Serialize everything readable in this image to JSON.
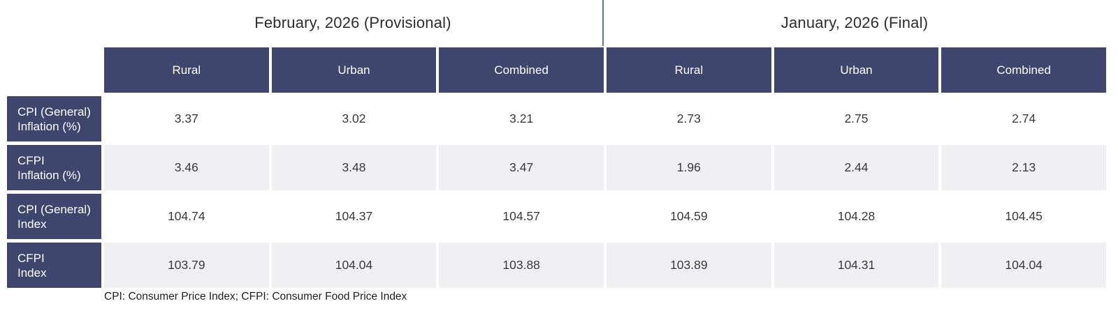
{
  "page": {
    "section_titles": {
      "left": "February, 2026 (Provisional)",
      "right": "January, 2026 (Final)"
    },
    "footnote": "CPI: Consumer Price Index; CFPI: Consumer Food Price Index"
  },
  "table": {
    "column_headers": [
      "Rural",
      "Urban",
      "Combined",
      "Rural",
      "Urban",
      "Combined"
    ],
    "rows": [
      {
        "label_lines": [
          "CPI (General)",
          "Inflation (%)"
        ],
        "values": [
          "3.37",
          "3.02",
          "3.21",
          "2.73",
          "2.75",
          "2.74"
        ]
      },
      {
        "label_lines": [
          "CFPI",
          "Inflation (%)"
        ],
        "values": [
          "3.46",
          "3.48",
          "3.47",
          "1.96",
          "2.44",
          "2.13"
        ]
      },
      {
        "label_lines": [
          "CPI (General)",
          "Index"
        ],
        "values": [
          "104.74",
          "104.37",
          "104.57",
          "104.59",
          "104.28",
          "104.45"
        ]
      },
      {
        "label_lines": [
          "CFPI",
          "Index"
        ],
        "values": [
          "103.79",
          "104.04",
          "103.88",
          "103.89",
          "104.31",
          "104.04"
        ]
      }
    ]
  },
  "colors": {
    "header_navy": "#3f466e",
    "row_alternate": "#f0f0f2",
    "section_divider": "#5e7988",
    "value_text": "#3a3a3a"
  },
  "chart_data": {
    "type": "table",
    "title": "",
    "column_groups": [
      {
        "label": "February, 2026 (Provisional)",
        "columns": [
          "Rural",
          "Urban",
          "Combined"
        ]
      },
      {
        "label": "January, 2026 (Final)",
        "columns": [
          "Rural",
          "Urban",
          "Combined"
        ]
      }
    ],
    "columns": [
      "Rural",
      "Urban",
      "Combined",
      "Rural",
      "Urban",
      "Combined"
    ],
    "rows": [
      {
        "label": "CPI (General) Inflation (%)",
        "values": [
          3.37,
          3.02,
          3.21,
          2.73,
          2.75,
          2.74
        ]
      },
      {
        "label": "CFPI Inflation (%)",
        "values": [
          3.46,
          3.48,
          3.47,
          1.96,
          2.44,
          2.13
        ]
      },
      {
        "label": "CPI (General) Index",
        "values": [
          104.74,
          104.37,
          104.57,
          104.59,
          104.28,
          104.45
        ]
      },
      {
        "label": "CFPI Index",
        "values": [
          103.79,
          104.04,
          103.88,
          103.89,
          104.31,
          104.04
        ]
      }
    ],
    "footnote": "CPI: Consumer Price Index; CFPI: Consumer Food Price Index"
  }
}
